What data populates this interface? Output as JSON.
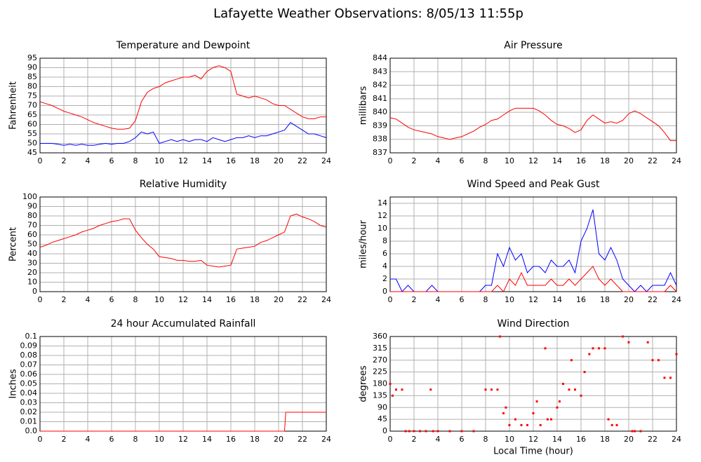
{
  "title": "Lafayette Weather Observations: 8/05/13 11:55p",
  "chart_data": [
    {
      "type": "line",
      "title": "Temperature and Dewpoint",
      "ylabel": "Fahrenheit",
      "x": [
        0,
        0.5,
        1,
        1.5,
        2,
        2.5,
        3,
        3.5,
        4,
        4.5,
        5,
        5.5,
        6,
        6.5,
        7,
        7.5,
        8,
        8.5,
        9,
        9.5,
        10,
        10.5,
        11,
        11.5,
        12,
        12.5,
        13,
        13.5,
        14,
        14.5,
        15,
        15.5,
        16,
        16.5,
        17,
        17.5,
        18,
        18.5,
        19,
        19.5,
        20,
        20.5,
        21,
        21.5,
        22,
        22.5,
        23,
        23.5,
        24
      ],
      "series": [
        {
          "color": "#ff0000",
          "values": [
            72,
            71,
            70,
            68.5,
            67,
            66,
            65,
            64,
            62.5,
            61,
            60,
            59,
            58,
            57.5,
            57.5,
            58,
            62,
            72,
            77,
            79,
            80,
            82,
            83,
            84,
            85,
            85,
            86,
            84,
            88,
            90,
            91,
            90,
            88,
            76,
            75,
            74,
            75,
            74,
            73,
            71,
            70,
            70,
            68,
            66,
            64,
            63,
            63,
            64,
            64
          ]
        },
        {
          "color": "#0000ff",
          "values": [
            50,
            50,
            50,
            49.5,
            49,
            49.5,
            49,
            49.5,
            49,
            49,
            49.5,
            50,
            49.5,
            50,
            50,
            51,
            53,
            56,
            55,
            56,
            50,
            51,
            52,
            51,
            52,
            51,
            52,
            52,
            51,
            53,
            52,
            51,
            52,
            53,
            53,
            54,
            53,
            54,
            54,
            55,
            56,
            57,
            61,
            59,
            57,
            55,
            55,
            54,
            53
          ]
        }
      ],
      "xlim": [
        0,
        24
      ],
      "xticks": [
        0,
        2,
        4,
        6,
        8,
        10,
        12,
        14,
        16,
        18,
        20,
        22,
        24
      ],
      "ylim": [
        45,
        95
      ],
      "yticks": [
        45,
        50,
        55,
        60,
        65,
        70,
        75,
        80,
        85,
        90,
        95
      ]
    },
    {
      "type": "line",
      "title": "Air Pressure",
      "ylabel": "millibars",
      "x": [
        0,
        0.5,
        1,
        1.5,
        2,
        2.5,
        3,
        3.5,
        4,
        4.5,
        5,
        5.5,
        6,
        6.5,
        7,
        7.5,
        8,
        8.5,
        9,
        9.5,
        10,
        10.5,
        11,
        11.5,
        12,
        12.5,
        13,
        13.5,
        14,
        14.5,
        15,
        15.5,
        16,
        16.5,
        17,
        17.5,
        18,
        18.5,
        19,
        19.5,
        20,
        20.5,
        21,
        21.5,
        22,
        22.5,
        23,
        23.5,
        24
      ],
      "series": [
        {
          "color": "#ff0000",
          "values": [
            839.6,
            839.5,
            839.2,
            838.9,
            838.7,
            838.6,
            838.5,
            838.4,
            838.2,
            838.1,
            838,
            838.1,
            838.2,
            838.4,
            838.6,
            838.9,
            839.1,
            839.4,
            839.5,
            839.8,
            840.1,
            840.3,
            840.3,
            840.3,
            840.3,
            840.1,
            839.8,
            839.4,
            839.1,
            839,
            838.8,
            838.5,
            838.7,
            839.4,
            839.8,
            839.5,
            839.2,
            839.3,
            839.2,
            839.4,
            839.9,
            840.1,
            839.9,
            839.6,
            839.3,
            839,
            838.5,
            837.9,
            837.9
          ]
        }
      ],
      "xlim": [
        0,
        24
      ],
      "xticks": [
        0,
        2,
        4,
        6,
        8,
        10,
        12,
        14,
        16,
        18,
        20,
        22,
        24
      ],
      "ylim": [
        837,
        844
      ],
      "yticks": [
        837,
        838,
        839,
        840,
        841,
        842,
        843,
        844
      ]
    },
    {
      "type": "line",
      "title": "Relative Humidity",
      "ylabel": "Percent",
      "x": [
        0,
        0.5,
        1,
        1.5,
        2,
        2.5,
        3,
        3.5,
        4,
        4.5,
        5,
        5.5,
        6,
        6.5,
        7,
        7.5,
        8,
        8.5,
        9,
        9.5,
        10,
        10.5,
        11,
        11.5,
        12,
        12.5,
        13,
        13.5,
        14,
        14.5,
        15,
        15.5,
        16,
        16.5,
        17,
        17.5,
        18,
        18.5,
        19,
        19.5,
        20,
        20.5,
        21,
        21.5,
        22,
        22.5,
        23,
        23.5,
        24
      ],
      "series": [
        {
          "color": "#ff0000",
          "values": [
            47,
            49,
            52,
            54,
            56,
            58,
            60,
            63,
            65,
            67,
            70,
            72,
            74,
            75,
            77,
            77,
            65,
            57,
            50,
            45,
            37,
            36,
            35,
            33,
            33,
            32,
            32,
            33,
            28,
            27,
            26,
            27,
            28,
            45,
            46,
            47,
            48,
            52,
            54,
            57,
            60,
            63,
            80,
            82,
            79,
            77,
            74,
            70,
            68
          ]
        }
      ],
      "xlim": [
        0,
        24
      ],
      "xticks": [
        0,
        2,
        4,
        6,
        8,
        10,
        12,
        14,
        16,
        18,
        20,
        22,
        24
      ],
      "ylim": [
        0,
        100
      ],
      "yticks": [
        0,
        10,
        20,
        30,
        40,
        50,
        60,
        70,
        80,
        90,
        100
      ]
    },
    {
      "type": "line",
      "title": "Wind Speed and Peak Gust",
      "ylabel": "miles/hour",
      "x": [
        0,
        0.5,
        1,
        1.5,
        2,
        2.5,
        3,
        3.5,
        4,
        4.5,
        5,
        5.5,
        6,
        6.5,
        7,
        7.5,
        8,
        8.5,
        9,
        9.5,
        10,
        10.5,
        11,
        11.5,
        12,
        12.5,
        13,
        13.5,
        14,
        14.5,
        15,
        15.5,
        16,
        16.5,
        17,
        17.5,
        18,
        18.5,
        19,
        19.5,
        20,
        20.5,
        21,
        21.5,
        22,
        22.5,
        23,
        23.5,
        24
      ],
      "series": [
        {
          "color": "#0000ff",
          "values": [
            2,
            2,
            0,
            1,
            0,
            0,
            0,
            1,
            0,
            0,
            0,
            0,
            0,
            0,
            0,
            0,
            1,
            1,
            6,
            4,
            7,
            5,
            6,
            3,
            4,
            4,
            3,
            5,
            4,
            4,
            5,
            3,
            8,
            10,
            13,
            6,
            5,
            7,
            5,
            2,
            1,
            0,
            1,
            0,
            1,
            1,
            1,
            3,
            1
          ]
        },
        {
          "color": "#ff0000",
          "values": [
            0,
            0,
            0,
            0,
            0,
            0,
            0,
            0,
            0,
            0,
            0,
            0,
            0,
            0,
            0,
            0,
            0,
            0,
            1,
            0,
            2,
            1,
            3,
            1,
            1,
            1,
            1,
            2,
            1,
            1,
            2,
            1,
            2,
            3,
            4,
            2,
            1,
            2,
            1,
            0,
            0,
            0,
            0,
            0,
            0,
            0,
            0,
            1,
            0
          ]
        }
      ],
      "xlim": [
        0,
        24
      ],
      "xticks": [
        0,
        2,
        4,
        6,
        8,
        10,
        12,
        14,
        16,
        18,
        20,
        22,
        24
      ],
      "ylim": [
        0,
        15
      ],
      "yticks": [
        0,
        2,
        4,
        6,
        8,
        10,
        12,
        14
      ]
    },
    {
      "type": "line",
      "title": "24 hour Accumulated Rainfall",
      "ylabel": "Inches",
      "x": [
        0,
        20.5,
        20.6,
        24
      ],
      "series": [
        {
          "color": "#ff0000",
          "values": [
            0,
            0,
            0.02,
            0.02
          ]
        }
      ],
      "xlim": [
        0,
        24
      ],
      "xticks": [
        0,
        2,
        4,
        6,
        8,
        10,
        12,
        14,
        16,
        18,
        20,
        22,
        24
      ],
      "ylim": [
        0,
        0.1
      ],
      "yticks": [
        {
          "value": 0,
          "label": "0.0"
        },
        0.01,
        0.02,
        0.03,
        0.04,
        0.05,
        0.06,
        0.07,
        0.08,
        0.09,
        0.1
      ]
    },
    {
      "type": "scatter",
      "title": "Wind Direction",
      "ylabel": "degrees",
      "xlabel": "Local Time (hour)",
      "x": [
        0,
        0.2,
        0.5,
        1,
        1.3,
        1.6,
        2,
        2.5,
        3,
        3.4,
        3.6,
        4,
        5,
        6,
        7,
        8,
        8.5,
        9,
        9.2,
        9.5,
        9.7,
        10,
        10.5,
        11,
        11.5,
        12,
        12.3,
        12.6,
        13,
        13.2,
        13.5,
        14,
        14.2,
        14.5,
        15,
        15.2,
        15.5,
        16,
        16.3,
        16.7,
        17,
        17.5,
        18,
        18.3,
        18.6,
        19,
        19.5,
        20,
        20.3,
        20.5,
        21,
        21.6,
        22,
        22.5,
        23,
        23.5,
        24
      ],
      "series": [
        {
          "color": "#ff0000",
          "values": [
            180,
            135,
            158,
            158,
            0,
            0,
            0,
            0,
            0,
            158,
            0,
            0,
            0,
            0,
            0,
            158,
            158,
            158,
            360,
            68,
            90,
            23,
            45,
            23,
            23,
            68,
            113,
            23,
            315,
            45,
            45,
            90,
            113,
            180,
            158,
            270,
            158,
            135,
            225,
            293,
            315,
            315,
            315,
            45,
            23,
            23,
            360,
            338,
            0,
            0,
            0,
            338,
            270,
            270,
            203,
            203,
            293
          ]
        }
      ],
      "xlim": [
        0,
        24
      ],
      "xticks": [
        0,
        2,
        4,
        6,
        8,
        10,
        12,
        14,
        16,
        18,
        20,
        22,
        24
      ],
      "ylim": [
        0,
        360
      ],
      "yticks": [
        0,
        45,
        90,
        135,
        180,
        225,
        270,
        315,
        360
      ]
    }
  ]
}
